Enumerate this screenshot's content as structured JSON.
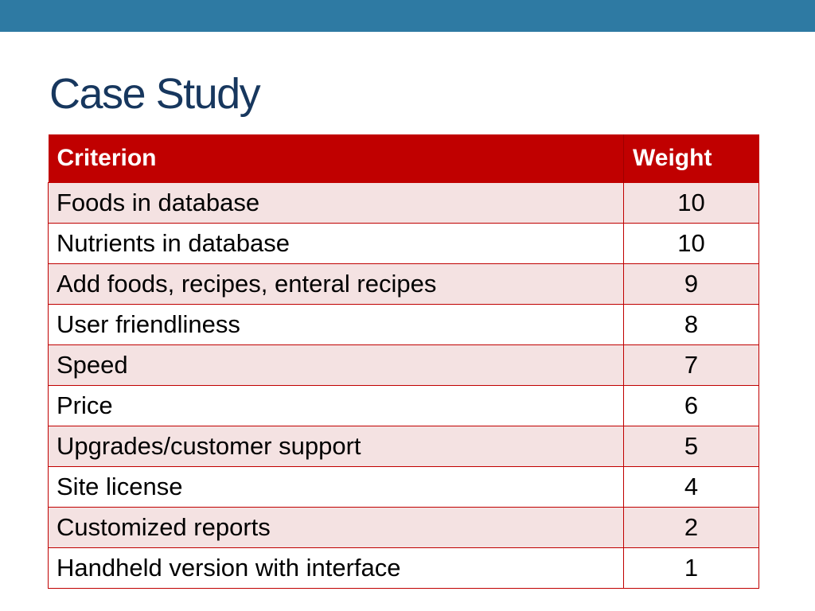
{
  "slide": {
    "title": "Case Study",
    "colors": {
      "top_bar": "#2e7aa3",
      "title": "#17375e",
      "header_bg": "#c00000",
      "row_band": "#f4e2e2"
    }
  },
  "table": {
    "headers": {
      "criterion": "Criterion",
      "weight": "Weight"
    },
    "rows": [
      {
        "criterion": "Foods in database",
        "weight": "10"
      },
      {
        "criterion": "Nutrients in database",
        "weight": "10"
      },
      {
        "criterion": "Add foods, recipes, enteral recipes",
        "weight": "9"
      },
      {
        "criterion": "User friendliness",
        "weight": "8"
      },
      {
        "criterion": "Speed",
        "weight": "7"
      },
      {
        "criterion": "Price",
        "weight": "6"
      },
      {
        "criterion": "Upgrades/customer support",
        "weight": "5"
      },
      {
        "criterion": "Site license",
        "weight": "4"
      },
      {
        "criterion": "Customized reports",
        "weight": "2"
      },
      {
        "criterion": "Handheld version with interface",
        "weight": "1"
      }
    ]
  }
}
